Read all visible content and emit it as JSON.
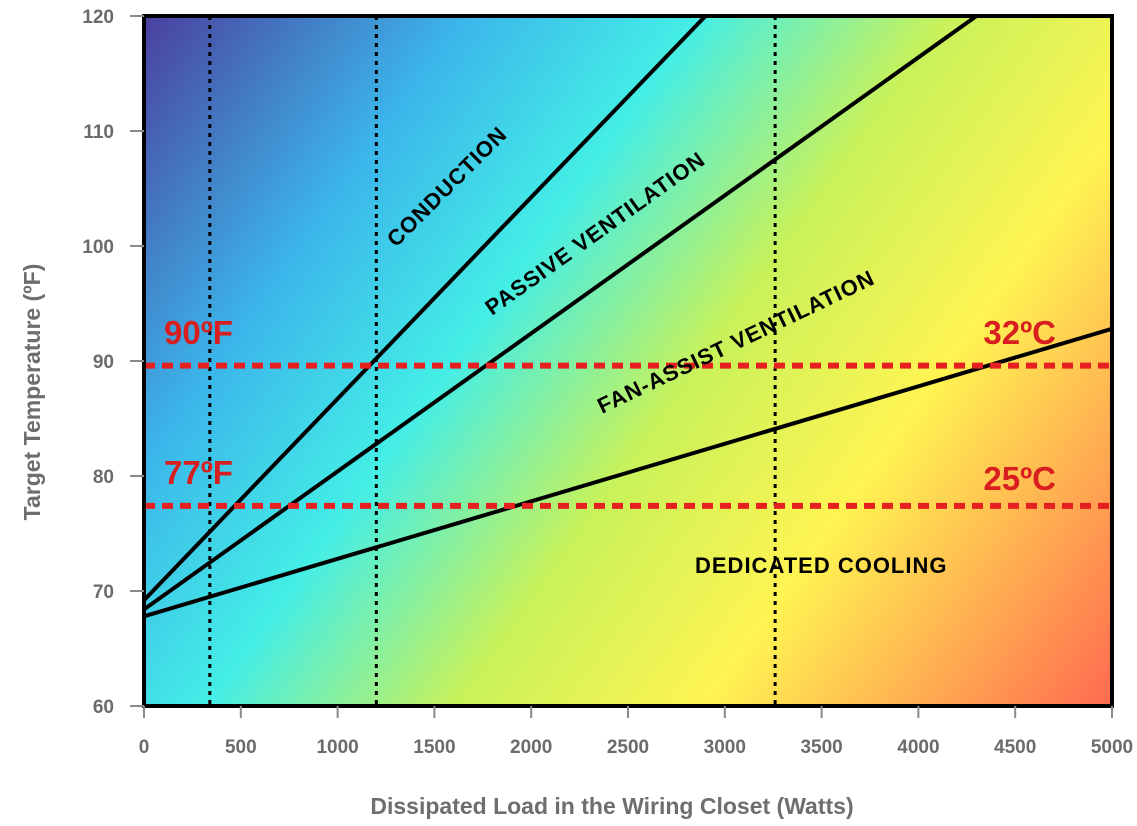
{
  "chart_data": {
    "type": "area",
    "xlabel": "Dissipated Load in the Wiring Closet (Watts)",
    "ylabel": "Target Temperature (ºF)",
    "xlim": [
      0,
      5000
    ],
    "ylim": [
      60,
      120
    ],
    "x_ticks": [
      "0",
      "500",
      "1000",
      "1500",
      "2000",
      "2500",
      "3000",
      "3500",
      "4000",
      "4500",
      "5000"
    ],
    "y_ticks": [
      "60",
      "70",
      "80",
      "90",
      "100",
      "110",
      "120"
    ],
    "grid": false,
    "boundaries": [
      {
        "from": [
          0,
          69.2
        ],
        "to": [
          2900,
          120
        ]
      },
      {
        "from": [
          0,
          68.4
        ],
        "to": [
          4300,
          120
        ]
      },
      {
        "from": [
          0,
          67.8
        ],
        "to": [
          5000,
          92.8
        ]
      }
    ],
    "regions": [
      "CONDUCTION",
      "PASSIVE VENTILATION",
      "FAN-ASSIST  VENTILATION",
      "DEDICATED  COOLING"
    ],
    "reference_lines_y": [
      {
        "y": 89.6,
        "left_label": "90ºF",
        "right_label": "32ºC",
        "color": "#e62020"
      },
      {
        "y": 77.4,
        "left_label": "77ºF",
        "right_label": "25ºC",
        "color": "#e62020"
      }
    ],
    "reference_lines_x": [
      340,
      1200,
      3260
    ],
    "colors": {
      "gradient": [
        "#4b3f9e",
        "#3bb6ea",
        "#44eee6",
        "#c8f25a",
        "#fff452",
        "#ff6a50"
      ],
      "boundary_line": "#000000",
      "reference_line": "#e62020",
      "vertical_line": "#000000"
    }
  }
}
